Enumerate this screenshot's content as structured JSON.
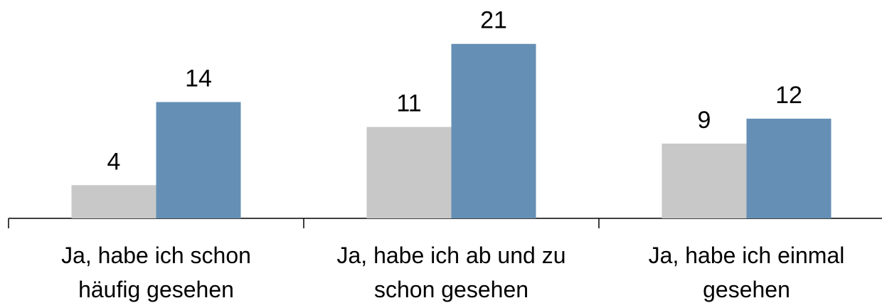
{
  "chart_data": {
    "type": "bar",
    "categories": [
      [
        "Ja, habe ich schon",
        "häufig gesehen"
      ],
      [
        "Ja, habe ich ab und zu",
        "schon gesehen"
      ],
      [
        "Ja, habe ich einmal",
        "gesehen"
      ]
    ],
    "series": [
      {
        "color": "#c8c8c8",
        "values": [
          4,
          11,
          9
        ]
      },
      {
        "color": "#658fb5",
        "values": [
          14,
          21,
          12
        ]
      }
    ],
    "ylim": [
      0,
      25
    ]
  }
}
